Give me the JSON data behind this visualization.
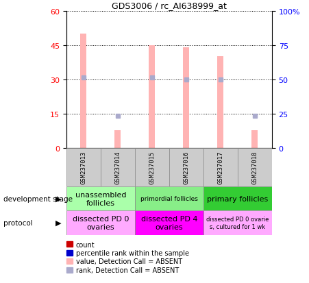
{
  "title": "GDS3006 / rc_AI638999_at",
  "samples": [
    "GSM237013",
    "GSM237014",
    "GSM237015",
    "GSM237016",
    "GSM237017",
    "GSM237018"
  ],
  "bar_values": [
    50,
    8,
    45,
    44,
    40,
    8
  ],
  "rank_values": [
    31,
    14,
    31,
    30,
    30,
    14
  ],
  "bar_color": "#ffb3b3",
  "rank_color": "#aaaacc",
  "left_yticks": [
    0,
    15,
    30,
    45,
    60
  ],
  "right_yticks": [
    0,
    25,
    50,
    75,
    100
  ],
  "left_ylim": [
    0,
    60
  ],
  "right_ylim": [
    0,
    100
  ],
  "dev_stage_groups": [
    {
      "label": "unassembled\nfollicles",
      "start": 0,
      "end": 2,
      "color": "#aaffaa",
      "fontsize": 8
    },
    {
      "label": "primordial follicles",
      "start": 2,
      "end": 4,
      "color": "#88ee88",
      "fontsize": 6.5
    },
    {
      "label": "primary follicles",
      "start": 4,
      "end": 6,
      "color": "#33cc33",
      "fontsize": 8
    }
  ],
  "protocol_groups": [
    {
      "label": "dissected PD 0\novaries",
      "start": 0,
      "end": 2,
      "color": "#ffaaff",
      "fontsize": 8
    },
    {
      "label": "dissected PD 4\novaries",
      "start": 2,
      "end": 4,
      "color": "#ff00ff",
      "fontsize": 8
    },
    {
      "label": "dissected PD 0 ovarie\ns, cultured for 1 wk",
      "start": 4,
      "end": 6,
      "color": "#ffaaff",
      "fontsize": 6
    }
  ],
  "legend_items": [
    {
      "label": "count",
      "color": "#cc0000"
    },
    {
      "label": "percentile rank within the sample",
      "color": "#0000cc"
    },
    {
      "label": "value, Detection Call = ABSENT",
      "color": "#ffb3b3"
    },
    {
      "label": "rank, Detection Call = ABSENT",
      "color": "#aaaacc"
    }
  ],
  "dev_stage_label": "development stage",
  "protocol_label": "protocol",
  "sample_box_color": "#cccccc",
  "bar_width": 0.18
}
